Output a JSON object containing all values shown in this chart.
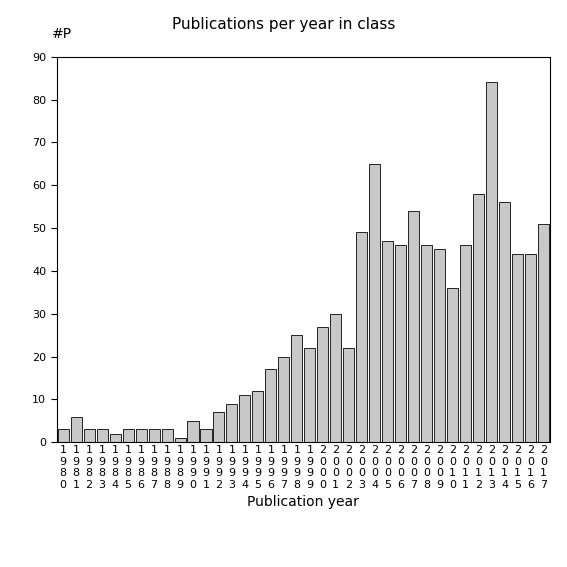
{
  "title": "Publications per year in class",
  "xlabel": "Publication year",
  "ylabel": "#P",
  "years": [
    1980,
    1981,
    1982,
    1983,
    1984,
    1985,
    1986,
    1987,
    1988,
    1989,
    1990,
    1991,
    1992,
    1993,
    1994,
    1995,
    1996,
    1997,
    1998,
    1999,
    2000,
    2001,
    2002,
    2003,
    2004,
    2005,
    2006,
    2007,
    2008,
    2009,
    2010,
    2011,
    2012,
    2013,
    2014,
    2015,
    2016,
    2017
  ],
  "values": [
    3,
    6,
    3,
    3,
    2,
    3,
    3,
    3,
    3,
    1,
    5,
    3,
    7,
    9,
    11,
    12,
    17,
    20,
    25,
    22,
    27,
    30,
    22,
    49,
    65,
    47,
    46,
    54,
    46,
    45,
    36,
    46,
    58,
    84,
    56,
    44,
    44,
    51
  ],
  "bar_color": "#c8c8c8",
  "bar_edgecolor": "#222222",
  "ylim": [
    0,
    90
  ],
  "yticks": [
    0,
    10,
    20,
    30,
    40,
    50,
    60,
    70,
    80,
    90
  ],
  "background_color": "#ffffff",
  "title_fontsize": 11,
  "label_fontsize": 10,
  "tick_fontsize": 8
}
